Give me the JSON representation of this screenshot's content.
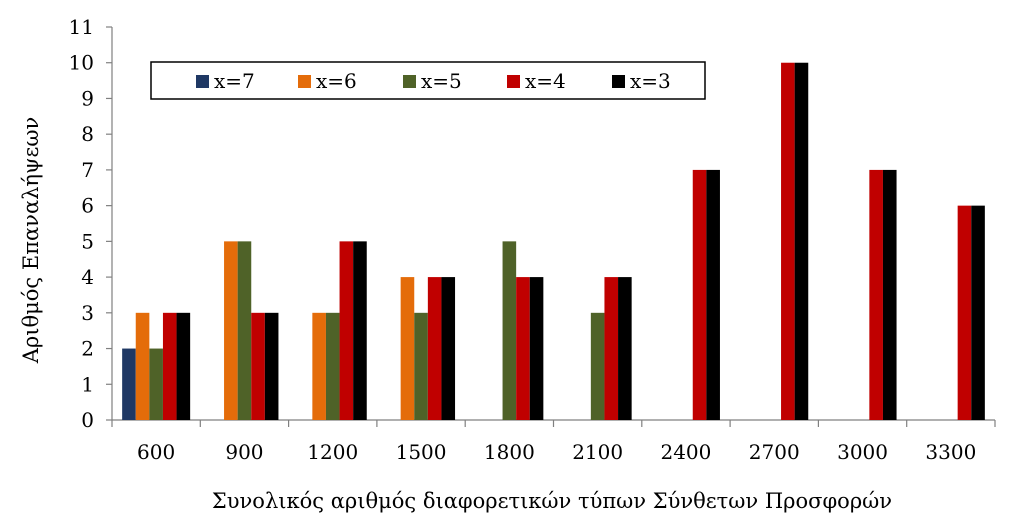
{
  "chart_data": {
    "type": "bar",
    "title": "",
    "xlabel": "Συνολικός αριθμός διαφορετικών τύπων Σύνθετων Προσφορών",
    "ylabel": "Αριθμός Επαναλήψεων",
    "categories": [
      "600",
      "900",
      "1200",
      "1500",
      "1800",
      "2100",
      "2400",
      "2700",
      "3000",
      "3300"
    ],
    "ylim": [
      0,
      11
    ],
    "yticks": [
      0,
      1,
      2,
      3,
      4,
      5,
      6,
      7,
      8,
      9,
      10,
      11
    ],
    "grid": false,
    "legend_position": "top",
    "series": [
      {
        "name": "x=7",
        "color": "#1f3864",
        "values": [
          2,
          null,
          null,
          null,
          null,
          null,
          null,
          null,
          null,
          null
        ]
      },
      {
        "name": "x=6",
        "color": "#e46c0a",
        "values": [
          3,
          5,
          3,
          4,
          null,
          null,
          null,
          null,
          null,
          null
        ]
      },
      {
        "name": "x=5",
        "color": "#4f6228",
        "values": [
          2,
          5,
          3,
          3,
          5,
          3,
          null,
          null,
          null,
          null
        ]
      },
      {
        "name": "x=4",
        "color": "#c00000",
        "values": [
          3,
          3,
          5,
          4,
          4,
          4,
          7,
          10,
          7,
          6
        ]
      },
      {
        "name": "x=3",
        "color": "#000000",
        "values": [
          3,
          3,
          5,
          4,
          4,
          4,
          7,
          10,
          7,
          6
        ]
      }
    ]
  }
}
